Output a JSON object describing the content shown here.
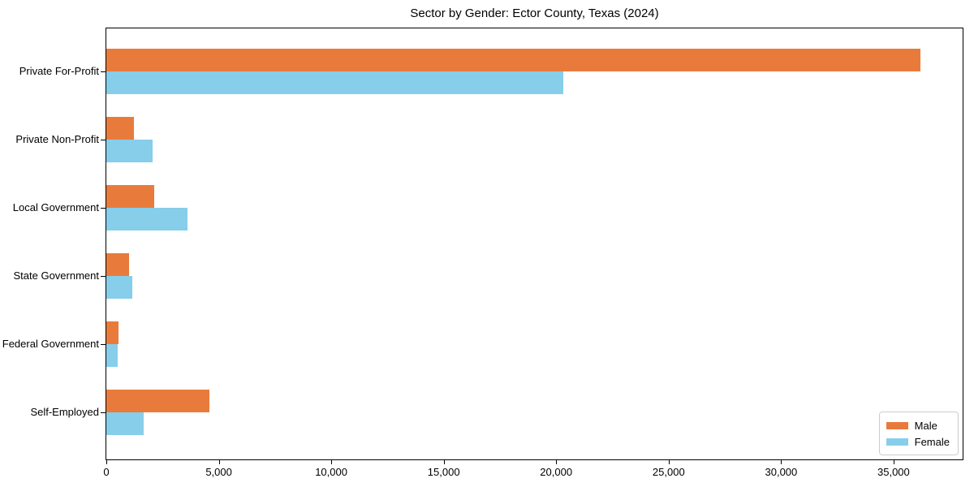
{
  "chart_data": {
    "type": "bar",
    "orientation": "horizontal",
    "title": "Sector by Gender: Ector County, Texas (2024)",
    "categories": [
      "Private For-Profit",
      "Private Non-Profit",
      "Local Government",
      "State Government",
      "Federal Government",
      "Self-Employed"
    ],
    "series": [
      {
        "name": "Male",
        "color": "#E87B3C",
        "values": [
          36200,
          1230,
          2120,
          1010,
          540,
          4580
        ]
      },
      {
        "name": "Female",
        "color": "#87CEEB",
        "values": [
          20300,
          2060,
          3590,
          1150,
          500,
          1660
        ]
      }
    ],
    "xlabel": "",
    "ylabel": "",
    "xlim": [
      0,
      38070
    ],
    "xticks": [
      {
        "value": 0,
        "label": "0"
      },
      {
        "value": 5000,
        "label": "5,000"
      },
      {
        "value": 10000,
        "label": "10,000"
      },
      {
        "value": 15000,
        "label": "15,000"
      },
      {
        "value": 20000,
        "label": "20,000"
      },
      {
        "value": 25000,
        "label": "25,000"
      },
      {
        "value": 30000,
        "label": "30,000"
      },
      {
        "value": 35000,
        "label": "35,000"
      }
    ],
    "legend_position": "lower right",
    "grid": false,
    "axis_color": "#000000",
    "background_color": "#ffffff"
  }
}
